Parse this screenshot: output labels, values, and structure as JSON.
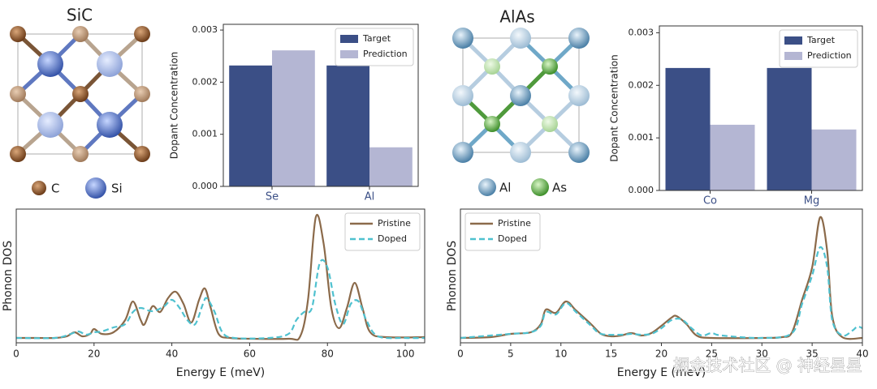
{
  "structures": [
    {
      "title": "SiC",
      "legend": [
        "C",
        "Si"
      ]
    },
    {
      "title": "AlAs",
      "legend": [
        "Al",
        "As"
      ]
    }
  ],
  "chart_data": [
    {
      "type": "bar",
      "ylabel": "Dopant Concentration",
      "categories": [
        "Se",
        "Al"
      ],
      "series": [
        {
          "name": "Target",
          "color": "#3b4f86",
          "values": [
            0.00232,
            0.00232
          ]
        },
        {
          "name": "Prediction",
          "color": "#b4b6d3",
          "values": [
            0.00261,
            0.00075
          ]
        }
      ],
      "ylim": [
        0,
        0.00311
      ],
      "yticks": [
        {
          "value": 0,
          "label": "0.000"
        },
        0.001,
        0.002,
        0.003
      ],
      "category_color": "#3b4f86",
      "legend": "upper right"
    },
    {
      "type": "bar",
      "ylabel": "Dopant Concentration",
      "categories": [
        "Co",
        "Mg"
      ],
      "series": [
        {
          "name": "Target",
          "color": "#3b4f86",
          "values": [
            0.00233,
            0.00233
          ]
        },
        {
          "name": "Prediction",
          "color": "#b4b6d3",
          "values": [
            0.00125,
            0.00116
          ]
        }
      ],
      "ylim": [
        0,
        0.00313
      ],
      "yticks": [
        {
          "value": 0,
          "label": "0.000"
        },
        0.001,
        0.002,
        0.003
      ],
      "category_color": "#3b4f86",
      "legend": "upper right"
    },
    {
      "type": "line",
      "xlabel": "Energy E (meV)",
      "ylabel": "Phonon DOS",
      "xlim": [
        0,
        105
      ],
      "xticks": [
        0,
        20,
        40,
        60,
        80,
        100
      ],
      "ylim": [
        0,
        16.5
      ],
      "legend": "upper right",
      "series": [
        {
          "name": "Pristine",
          "color": "#8b6a4a",
          "linestyle": "solid",
          "x": [
            0,
            5,
            10,
            13,
            15,
            17,
            19,
            20,
            22,
            25,
            28,
            30,
            32,
            33,
            35,
            37,
            39,
            41,
            43,
            45,
            47,
            48.5,
            50,
            52,
            55,
            60,
            70,
            73,
            75,
            77,
            79,
            81,
            83,
            85,
            87,
            89,
            91,
            95,
            105
          ],
          "values": [
            0.6,
            0.6,
            0.6,
            0.8,
            1.3,
            0.8,
            1.1,
            1.7,
            1.1,
            1.3,
            2.8,
            5.1,
            2.8,
            2.3,
            4.5,
            3.8,
            5.5,
            6.3,
            4.8,
            2.5,
            5.3,
            6.7,
            4.3,
            1.1,
            0.6,
            0.5,
            0.5,
            0.8,
            5.3,
            15.5,
            12.3,
            4.3,
            1.8,
            4.3,
            7.4,
            4.3,
            1.3,
            0.7,
            0.7
          ]
        },
        {
          "name": "Doped",
          "color": "#4fc1cf",
          "linestyle": "dashed",
          "x": [
            0,
            10,
            14,
            16,
            18,
            20,
            22,
            25,
            28,
            30,
            32,
            35,
            38,
            40,
            42,
            44,
            46,
            48,
            49,
            51,
            53,
            56,
            65,
            70,
            72,
            74,
            76,
            78,
            80,
            82,
            84,
            86,
            88,
            90,
            93,
            100,
            105
          ],
          "values": [
            0.6,
            0.6,
            1.1,
            1.4,
            1.0,
            1.3,
            1.4,
            1.9,
            2.3,
            3.8,
            4.3,
            3.9,
            4.5,
            5.3,
            4.3,
            2.8,
            2.3,
            4.8,
            5.5,
            3.8,
            1.3,
            0.6,
            0.6,
            1.1,
            2.8,
            3.8,
            4.3,
            9.8,
            9.3,
            4.8,
            2.3,
            4.8,
            5.1,
            2.8,
            0.8,
            0.6,
            0.6
          ]
        }
      ]
    },
    {
      "type": "line",
      "xlabel": "Energy E (meV)",
      "ylabel": "Phonon DOS",
      "xlim": [
        0,
        40
      ],
      "xticks": [
        0,
        5,
        10,
        15,
        20,
        25,
        30,
        35,
        40
      ],
      "ylim": [
        0,
        16.5
      ],
      "legend": "upper left",
      "series": [
        {
          "name": "Pristine",
          "color": "#8b6a4a",
          "linestyle": "solid",
          "x": [
            0,
            3,
            5,
            7,
            8,
            8.5,
            9.5,
            10.5,
            11.5,
            13,
            14,
            15,
            16,
            17,
            18,
            19,
            20,
            21,
            21.5,
            22.5,
            23.5,
            25,
            30,
            32,
            33,
            34,
            35,
            35.8,
            36.5,
            37,
            38,
            40
          ],
          "values": [
            0.6,
            0.7,
            1.1,
            1.3,
            2.3,
            4.1,
            3.7,
            5.1,
            4.0,
            2.3,
            1.1,
            0.8,
            0.9,
            1.2,
            0.9,
            1.2,
            2.1,
            3.1,
            3.3,
            2.3,
            0.9,
            0.6,
            0.6,
            0.7,
            1.3,
            5.3,
            9.3,
            15.5,
            11.3,
            3.3,
            0.7,
            0.6
          ]
        },
        {
          "name": "Doped",
          "color": "#4fc1cf",
          "linestyle": "dashed",
          "x": [
            0,
            5,
            7,
            8,
            8.5,
            9.5,
            10.5,
            11.5,
            13,
            14,
            16,
            17,
            18,
            19,
            20,
            21,
            22,
            23,
            24,
            25,
            26,
            30,
            33,
            34,
            35,
            35.8,
            36.5,
            37,
            38,
            39,
            39.5,
            40
          ],
          "values": [
            0.6,
            1.1,
            1.3,
            2.1,
            3.8,
            3.5,
            4.9,
            3.8,
            2.1,
            1.1,
            1.0,
            1.1,
            1.0,
            1.1,
            1.8,
            2.8,
            2.9,
            1.8,
            0.9,
            1.2,
            0.9,
            0.6,
            1.2,
            4.8,
            8.3,
            11.8,
            9.3,
            2.8,
            0.9,
            1.5,
            2.0,
            1.8
          ]
        }
      ]
    }
  ],
  "watermark": "掘金技术社区 @ 神经星星"
}
